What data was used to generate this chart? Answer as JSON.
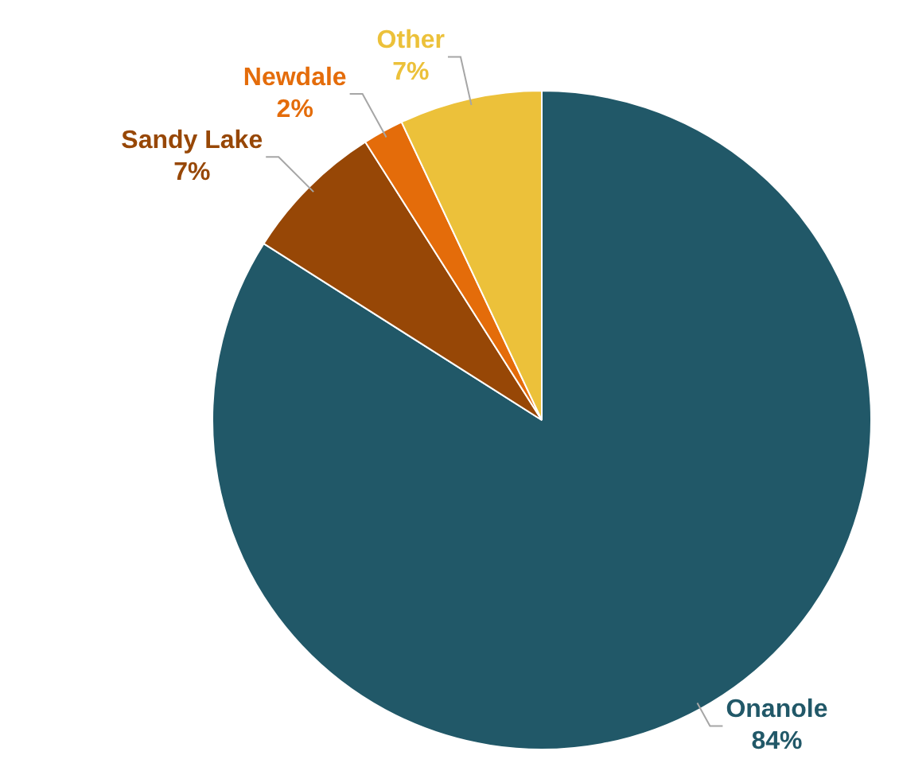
{
  "chart_data": {
    "type": "pie",
    "categories": [
      "Onanole",
      "Sandy Lake",
      "Newdale",
      "Other"
    ],
    "values": [
      84,
      7,
      2,
      7
    ],
    "colors": [
      "#215868",
      "#974706",
      "#e46c0a",
      "#ecc13a"
    ],
    "value_labels": [
      "84%",
      "7%",
      "2%",
      "7%"
    ],
    "legend": false
  }
}
